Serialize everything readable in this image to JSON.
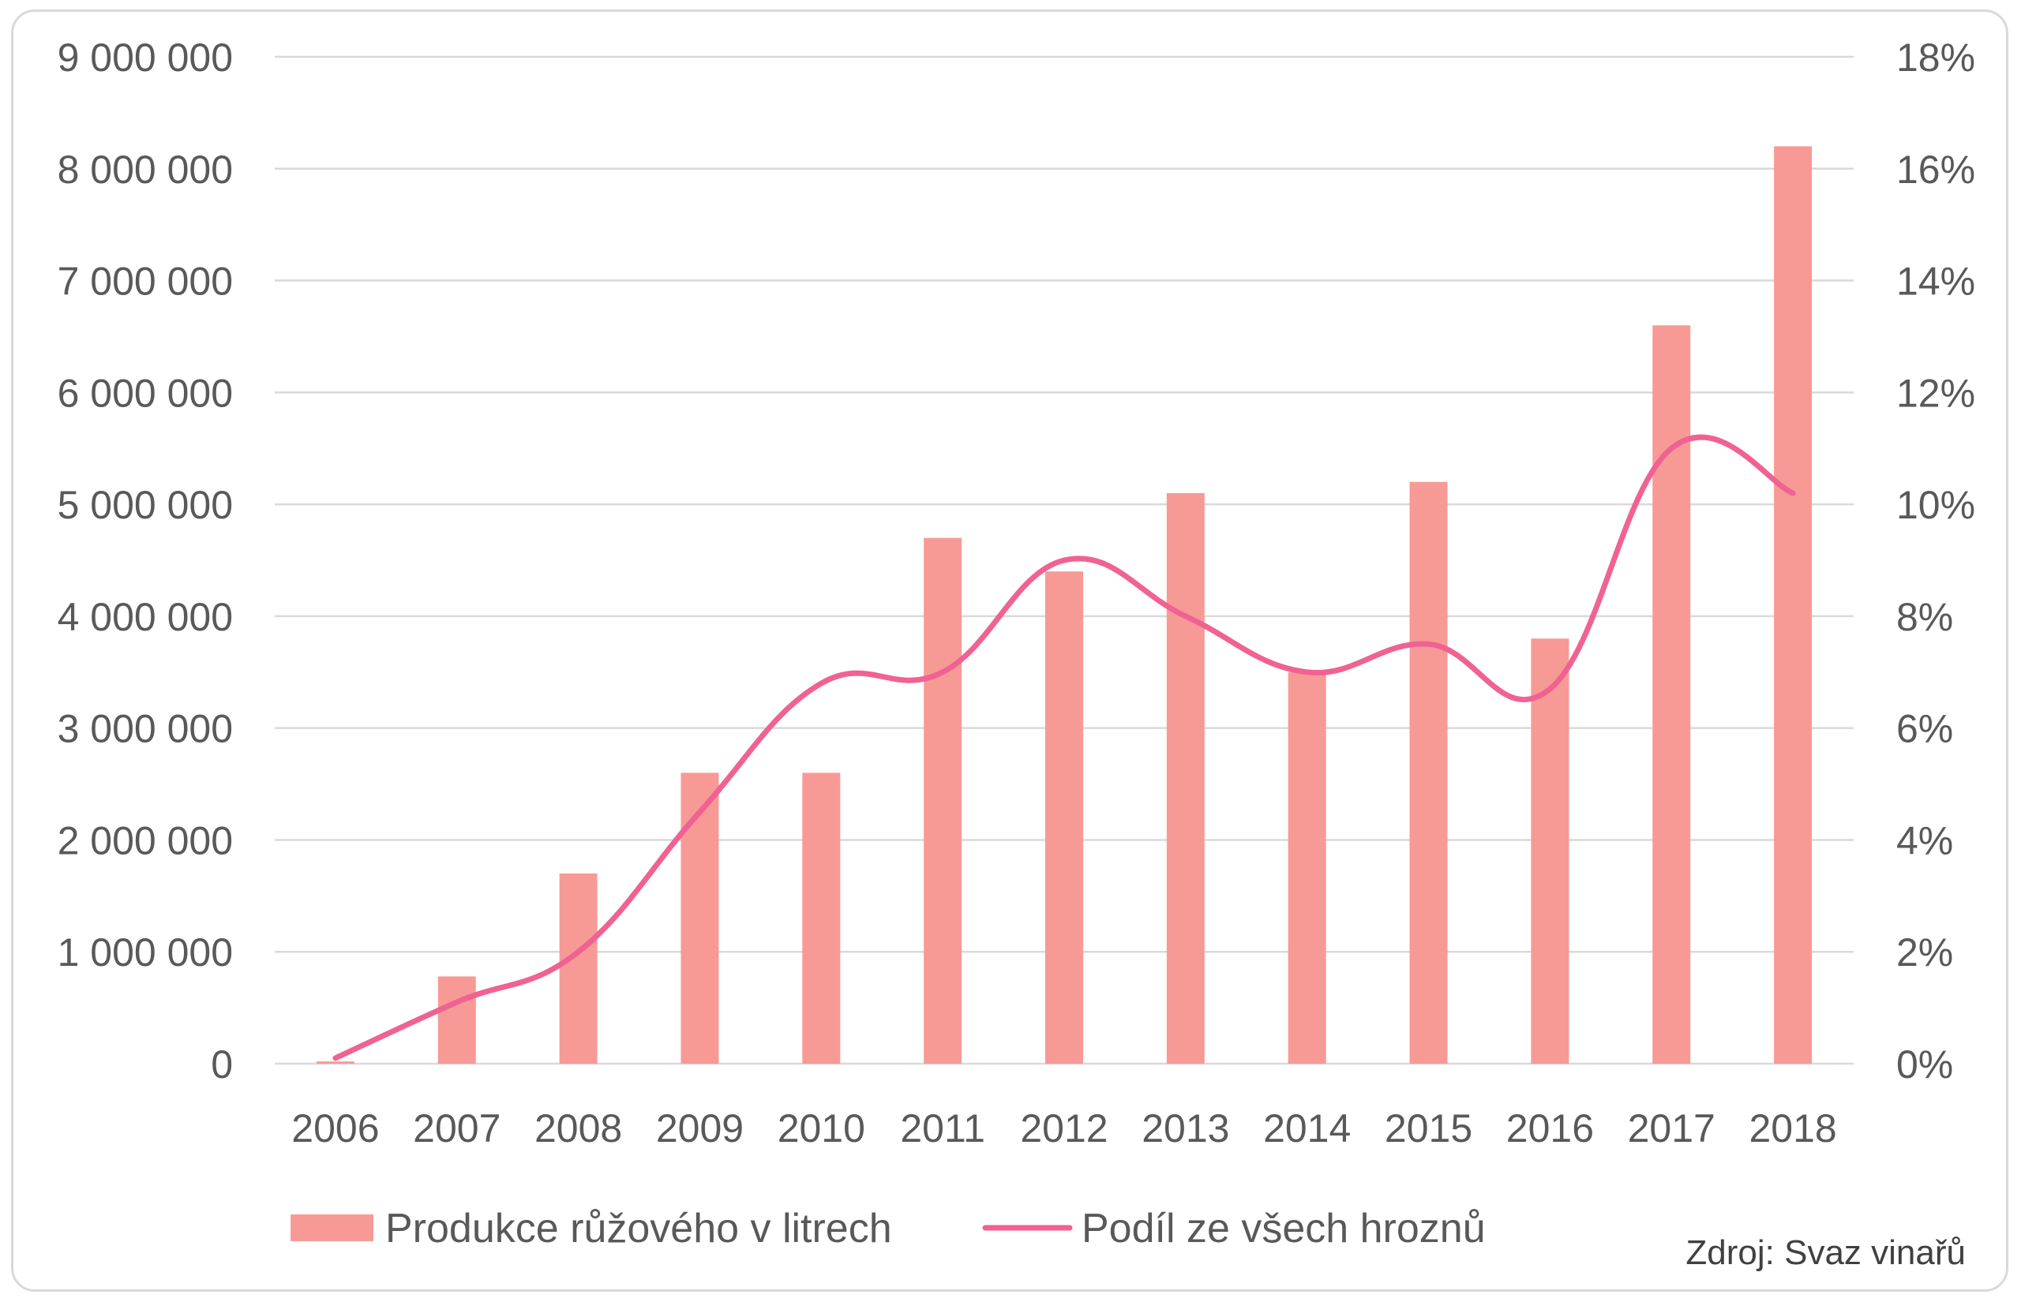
{
  "chart_data": {
    "type": "bar",
    "categories": [
      "2006",
      "2007",
      "2008",
      "2009",
      "2010",
      "2011",
      "2012",
      "2013",
      "2014",
      "2015",
      "2016",
      "2017",
      "2018"
    ],
    "series": [
      {
        "name": "Produkce růžového v litrech",
        "type": "bar",
        "axis": "left",
        "color": "#f79a96",
        "values": [
          20000,
          780000,
          1700000,
          2600000,
          2600000,
          4700000,
          4400000,
          5100000,
          3500000,
          5200000,
          3800000,
          6600000,
          8200000
        ]
      },
      {
        "name": "Podíl ze všech hroznů",
        "type": "line",
        "axis": "right",
        "color": "#f06292",
        "values": [
          0.1,
          1.1,
          2.0,
          4.5,
          6.8,
          7.0,
          9.0,
          8.0,
          7.0,
          7.5,
          6.7,
          11.0,
          10.2
        ]
      }
    ],
    "ylim": [
      0,
      9000000
    ],
    "y2lim": [
      0,
      18
    ],
    "yticks": [
      "0",
      "1 000 000",
      "2 000 000",
      "3 000 000",
      "4 000 000",
      "5 000 000",
      "6 000 000",
      "7 000 000",
      "8 000 000",
      "9 000 000"
    ],
    "y2ticks": [
      "0%",
      "2%",
      "4%",
      "6%",
      "8%",
      "10%",
      "12%",
      "14%",
      "16%",
      "18%"
    ],
    "grid": true,
    "legend_position": "bottom",
    "source": "Zdroj: Svaz vinařů"
  }
}
